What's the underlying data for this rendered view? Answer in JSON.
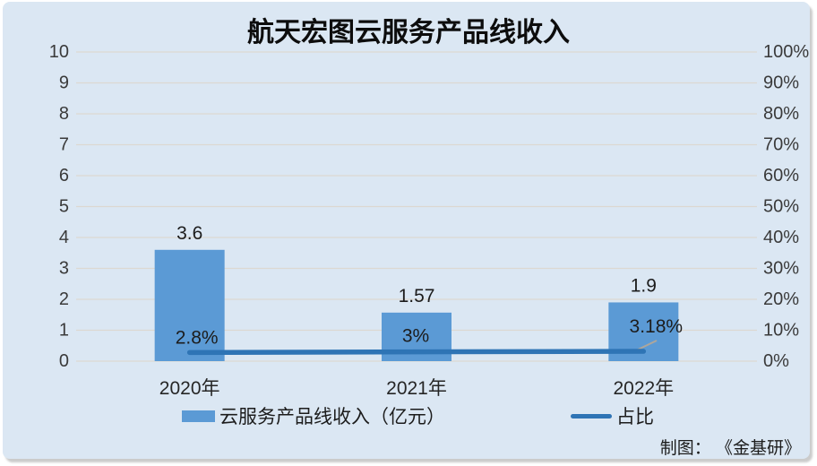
{
  "title": "航天宏图云服务产品线收入",
  "attribution": "制图： 《金基研》",
  "colors": {
    "panel_background": "#dbe7f3",
    "bar": "#5b9ad5",
    "line": "#2e74b5",
    "gridline": "#dcd8d1",
    "axis_text": "#3a3a3a",
    "leader_line": "#ada69c"
  },
  "chart_data": {
    "type": "combo",
    "title": "航天宏图云服务产品线收入",
    "categories": [
      "2020年",
      "2021年",
      "2022年"
    ],
    "series": [
      {
        "name": "云服务产品线收入（亿元）",
        "type": "bar",
        "axis": "left",
        "values": [
          3.6,
          1.57,
          1.9
        ],
        "data_labels": [
          "3.6",
          "1.57",
          "1.9"
        ],
        "color": "#5b9ad5"
      },
      {
        "name": "占比",
        "type": "line",
        "axis": "right",
        "values": [
          2.8,
          3.0,
          3.18
        ],
        "data_labels": [
          "2.8%",
          "3%",
          "3.18%"
        ],
        "color": "#2e74b5"
      }
    ],
    "left_axis": {
      "min": 0,
      "max": 10,
      "step": 1,
      "tick_labels": [
        "0",
        "1",
        "2",
        "3",
        "4",
        "5",
        "6",
        "7",
        "8",
        "9",
        "10"
      ]
    },
    "right_axis": {
      "min": 0,
      "max": 100,
      "step": 10,
      "tick_labels": [
        "0%",
        "10%",
        "20%",
        "30%",
        "40%",
        "50%",
        "60%",
        "70%",
        "80%",
        "90%",
        "100%"
      ]
    },
    "grid": true,
    "legend_position": "bottom"
  }
}
